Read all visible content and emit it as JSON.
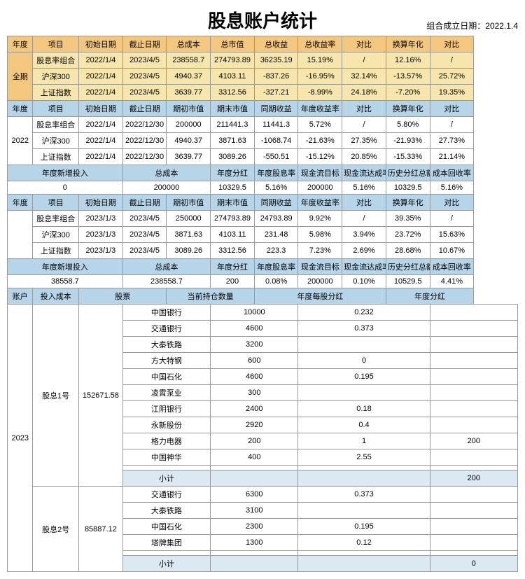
{
  "title": "股息账户统计",
  "subtitle_label": "组合成立日期：",
  "subtitle_date": "2022.1.4",
  "header_a": [
    "年度",
    "项目",
    "初始日期",
    "截止日期",
    "总成本",
    "总市值",
    "总收益",
    "总收益率",
    "对比",
    "换算年化",
    "对比"
  ],
  "all_period_label": "全期",
  "all_period_rows": [
    [
      "股息率组合",
      "2022/1/4",
      "2023/4/5",
      "238558.7",
      "274793.89",
      "36235.19",
      "15.19%",
      "/",
      "12.16%",
      "/"
    ],
    [
      "沪深300",
      "2022/1/4",
      "2023/4/5",
      "4940.37",
      "4103.11",
      "-837.26",
      "-16.95%",
      "32.14%",
      "-13.57%",
      "25.72%"
    ],
    [
      "上证指数",
      "2022/1/4",
      "2023/4/5",
      "3639.77",
      "3312.56",
      "-327.21",
      "-8.99%",
      "24.18%",
      "-7.20%",
      "19.35%"
    ]
  ],
  "header_b": [
    "年度",
    "项目",
    "初始日期",
    "截止日期",
    "期初市值",
    "期末市值",
    "同期收益",
    "年度收益率",
    "对比",
    "换算年化",
    "对比"
  ],
  "y2022_label": "2022",
  "y2022_rows": [
    [
      "股息率组合",
      "2022/1/4",
      "2022/12/30",
      "200000",
      "211441.3",
      "11441.3",
      "5.72%",
      "/",
      "5.80%",
      "/"
    ],
    [
      "沪深300",
      "2022/1/4",
      "2022/12/30",
      "4940.37",
      "3871.63",
      "-1068.74",
      "-21.63%",
      "27.35%",
      "-21.93%",
      "27.73%"
    ],
    [
      "上证指数",
      "2022/1/4",
      "2022/12/30",
      "3639.77",
      "3089.26",
      "-550.51",
      "-15.12%",
      "20.85%",
      "-15.33%",
      "21.14%"
    ]
  ],
  "summary_hdr": [
    "年度新增投入",
    "总成本",
    "年度分红",
    "年度股息率",
    "现金流目标",
    "现金流达成率",
    "历史分红总额",
    "成本回收率"
  ],
  "y2022_summary": [
    "0",
    "200000",
    "10329.5",
    "5.16%",
    "200000",
    "5.16%",
    "10329.5",
    "5.16%"
  ],
  "y2023_label": "2023",
  "y2023_rows": [
    [
      "股息率组合",
      "2023/1/3",
      "2023/4/5",
      "250000",
      "274793.89",
      "24793.89",
      "9.92%",
      "/",
      "39.35%",
      "/"
    ],
    [
      "沪深300",
      "2023/1/3",
      "2023/4/5",
      "3871.63",
      "4103.11",
      "231.48",
      "5.98%",
      "3.94%",
      "23.72%",
      "15.63%"
    ],
    [
      "上证指数",
      "2023/1/3",
      "2023/4/5",
      "3089.26",
      "3312.56",
      "223.3",
      "7.23%",
      "2.69%",
      "28.68%",
      "10.67%"
    ]
  ],
  "y2023_summary": [
    "38558.7",
    "238558.7",
    "200",
    "0.08%",
    "200000",
    "0.10%",
    "10529.5",
    "4.41%"
  ],
  "holdings_hdr": [
    "账户",
    "投入成本",
    "股票",
    "当前持仓数量",
    "年度每股分红",
    "年度分红"
  ],
  "acct1_name": "股息1号",
  "acct1_cost": "152671.58",
  "acct1_rows": [
    [
      "中国银行",
      "10000",
      "0.232",
      ""
    ],
    [
      "交通银行",
      "4600",
      "0.373",
      ""
    ],
    [
      "大秦铁路",
      "3200",
      "",
      ""
    ],
    [
      "方大特钢",
      "600",
      "0",
      ""
    ],
    [
      "中国石化",
      "4600",
      "0.195",
      ""
    ],
    [
      "凌霄泵业",
      "300",
      "",
      ""
    ],
    [
      "江阴银行",
      "2400",
      "0.18",
      ""
    ],
    [
      "永新股份",
      "2920",
      "0.4",
      ""
    ],
    [
      "格力电器",
      "200",
      "1",
      "200"
    ],
    [
      "中国神华",
      "400",
      "2.55",
      ""
    ],
    [
      "",
      "",
      "",
      ""
    ]
  ],
  "subtotal_label": "小计",
  "acct1_subtotal": [
    "",
    "",
    "200"
  ],
  "acct2_name": "股息2号",
  "acct2_cost": "85887.12",
  "acct2_rows": [
    [
      "交通银行",
      "6300",
      "0.373",
      ""
    ],
    [
      "大秦铁路",
      "3100",
      "",
      ""
    ],
    [
      "中国石化",
      "2300",
      "0.195",
      ""
    ],
    [
      "塔牌集团",
      "1300",
      "0.12",
      ""
    ],
    [
      "",
      "",
      "",
      ""
    ]
  ],
  "acct2_subtotal": [
    "",
    "",
    "0"
  ]
}
